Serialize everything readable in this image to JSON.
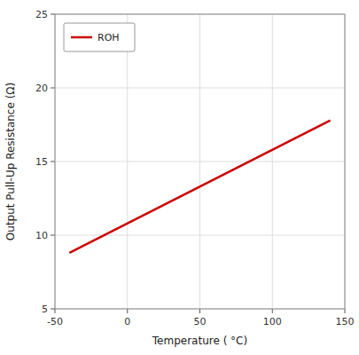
{
  "chart_data": {
    "type": "line",
    "x": [
      -40,
      140
    ],
    "series": [
      {
        "name": "ROH",
        "color": "#cc0000",
        "values": [
          8.8,
          17.8
        ]
      }
    ],
    "x_label": "Temperature ( °C)",
    "y_label": "Output Pull-Up Resistance (Ω)",
    "xlim": [
      -50,
      150
    ],
    "ylim": [
      5,
      25
    ],
    "xticks": [
      -50,
      0,
      50,
      100,
      150
    ],
    "yticks": [
      5,
      10,
      15,
      20,
      25
    ],
    "grid": true,
    "legend": "upper left"
  }
}
